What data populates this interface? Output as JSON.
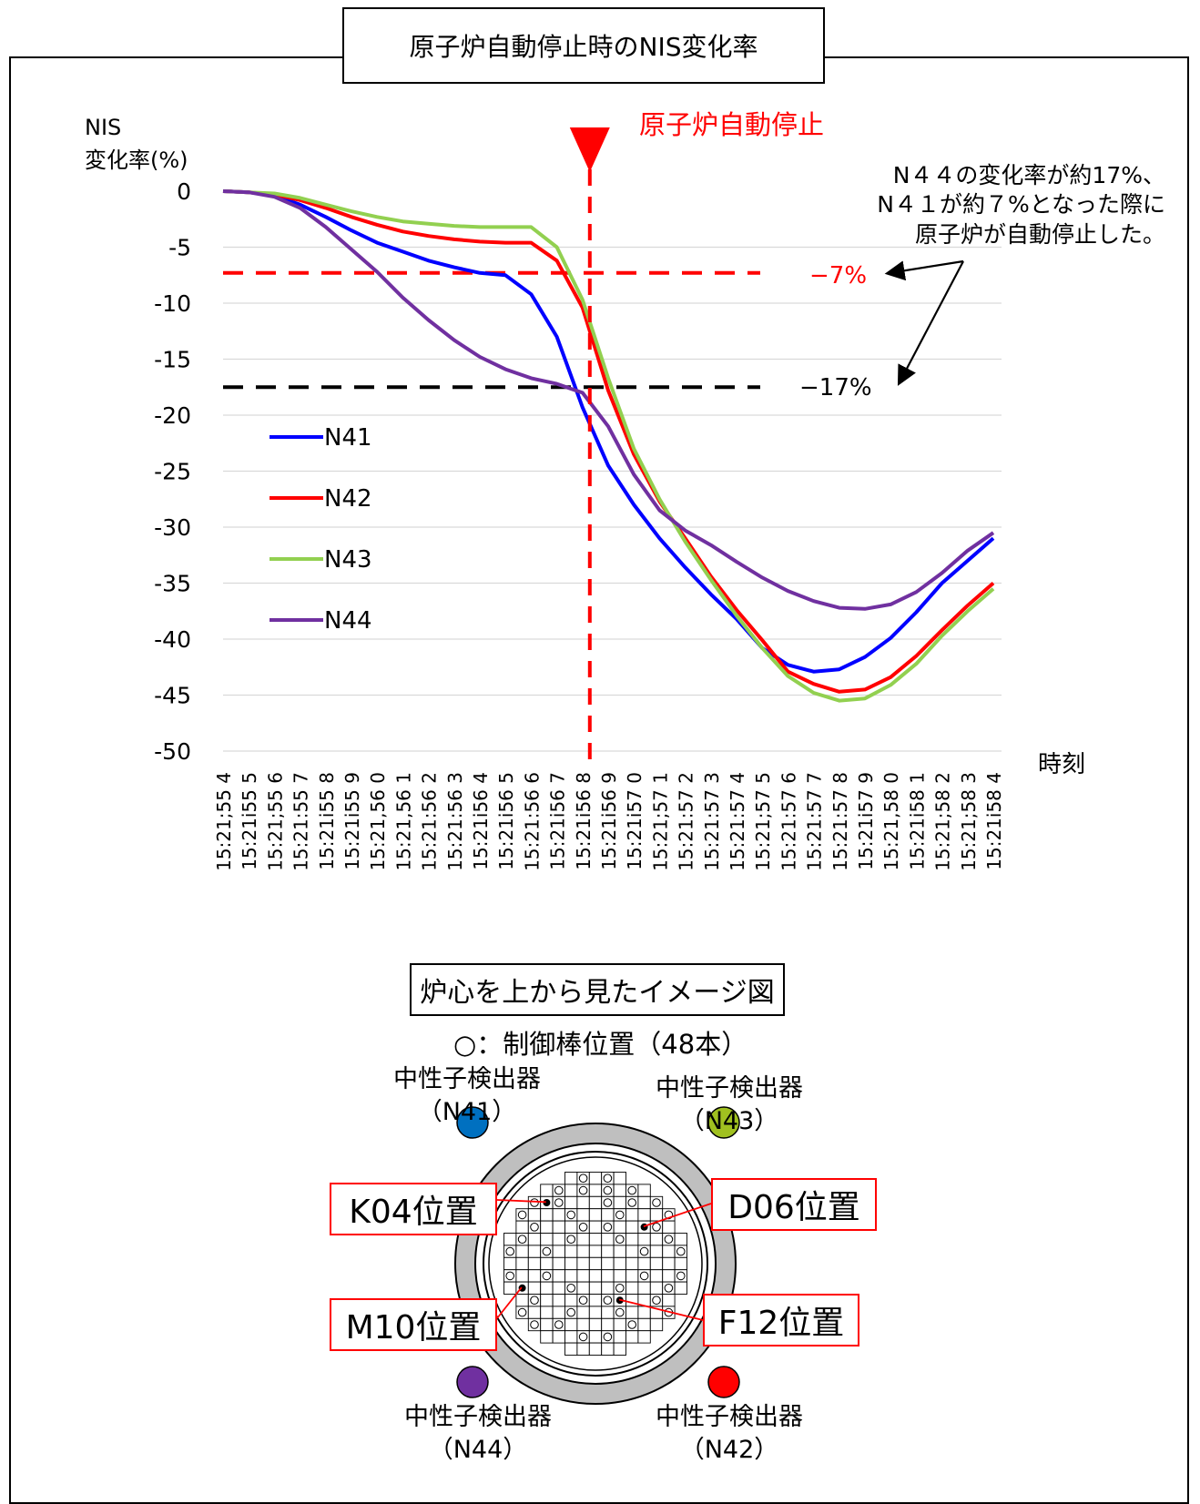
{
  "chart_title": "原子炉自動停止時のNIS変化率",
  "trip_label": "原子炉自動停止",
  "annotation": {
    "lines": [
      "N４４の変化率が約17%、",
      "N４１が約７%となった際に",
      "原子炉が自動停止した。"
    ]
  },
  "threshold_labels": {
    "n41": "−7%",
    "n44": "−17%"
  },
  "colors": {
    "N41": "#0000ff",
    "N42": "#ff0000",
    "N43": "#92d050",
    "N44": "#7030a0",
    "trip": "#ff0000"
  },
  "chart_data": {
    "type": "line",
    "ylabel_lines": [
      "NIS",
      "変化率(%)"
    ],
    "xlabel": "時刻",
    "ylim": [
      -50,
      0
    ],
    "yticks": [
      0,
      -5,
      -10,
      -15,
      -20,
      -25,
      -30,
      -35,
      -40,
      -45,
      -50
    ],
    "grid": "horizontal",
    "legend_placement": "left-middle",
    "categories": [
      "15:21;55 4",
      "15:21i55 5",
      "15:21;55 6",
      "15:21:55 7",
      "15:21i55 8",
      "15:21i55 9",
      "15:21,56 0",
      "15:21,56 1",
      "15:21:56 2",
      "15:21:56 3",
      "15:21i56 4",
      "15:21i56 5",
      "15:21:56 6",
      "15:21i56 7",
      "15:21i56 8",
      "15:21i56 9",
      "15:21i57 0",
      "15:21;57 1",
      "15:21:57 2",
      "15:21:57 3",
      "15:21:57 4",
      "15:21;57 5",
      "15:21:57 6",
      "15:21:57 7",
      "15:21:57 8",
      "15:21i57 9",
      "15:21,58 0",
      "15:21i58 1",
      "15:21;58 2",
      "15:21;58 3",
      "15:21i58 4"
    ],
    "series": [
      {
        "name": "N41",
        "values": [
          0,
          -0.1,
          -0.4,
          -1.2,
          -2.3,
          -3.5,
          -4.6,
          -5.4,
          -6.2,
          -6.8,
          -7.3,
          -7.5,
          -9.2,
          -13,
          -19.3,
          -24.5,
          -28,
          -31,
          -33.6,
          -36,
          -38.2,
          -40.8,
          -42.3,
          -42.9,
          -42.7,
          -41.6,
          -39.9,
          -37.6,
          -35,
          -33,
          -31
        ],
        "color": "#0000ff"
      },
      {
        "name": "N42",
        "values": [
          0,
          -0.1,
          -0.3,
          -0.8,
          -1.5,
          -2.3,
          -3,
          -3.6,
          -4,
          -4.3,
          -4.5,
          -4.6,
          -4.6,
          -6.2,
          -10.4,
          -17.8,
          -23.5,
          -27.7,
          -31,
          -34.4,
          -37.4,
          -40.1,
          -42.9,
          -44,
          -44.7,
          -44.5,
          -43.4,
          -41.5,
          -39.2,
          -37,
          -35
        ],
        "color": "#ff0000"
      },
      {
        "name": "N43",
        "values": [
          0,
          -0.1,
          -0.2,
          -0.6,
          -1.2,
          -1.8,
          -2.3,
          -2.7,
          -2.9,
          -3.1,
          -3.2,
          -3.2,
          -3.2,
          -5,
          -9.7,
          -16.7,
          -23,
          -27.5,
          -31.3,
          -34.7,
          -37.9,
          -40.8,
          -43.3,
          -44.8,
          -45.5,
          -45.3,
          -44.1,
          -42.2,
          -39.7,
          -37.5,
          -35.5
        ],
        "color": "#92d050"
      },
      {
        "name": "N44",
        "values": [
          0,
          -0.1,
          -0.5,
          -1.5,
          -3.2,
          -5.2,
          -7.2,
          -9.5,
          -11.5,
          -13.3,
          -14.8,
          -15.9,
          -16.7,
          -17.2,
          -18,
          -21,
          -25.3,
          -28.5,
          -30.3,
          -31.6,
          -33.1,
          -34.5,
          -35.7,
          -36.6,
          -37.2,
          -37.3,
          -36.9,
          -35.8,
          -34.1,
          -32.1,
          -30.5
        ],
        "color": "#7030a0"
      }
    ],
    "trip_index": 14,
    "threshold_values": [
      -7.3,
      -17.5
    ]
  },
  "core_title": "炉心を上から見たイメージ図",
  "rod_legend": "○：制御棒位置（48本）",
  "detectors": [
    {
      "label": "中性子検出器",
      "id": "（N41）",
      "color": "#0070c0"
    },
    {
      "label": "中性子検出器",
      "id": "（N43）",
      "color": "#a0c020"
    },
    {
      "label": "中性子検出器",
      "id": "（N44）",
      "color": "#7030a0"
    },
    {
      "label": "中性子検出器",
      "id": "（N42）",
      "color": "#ff0000"
    }
  ],
  "positions": {
    "k04": "K04位置",
    "d06": "D06位置",
    "m10": "M10位置",
    "f12": "F12位置"
  }
}
